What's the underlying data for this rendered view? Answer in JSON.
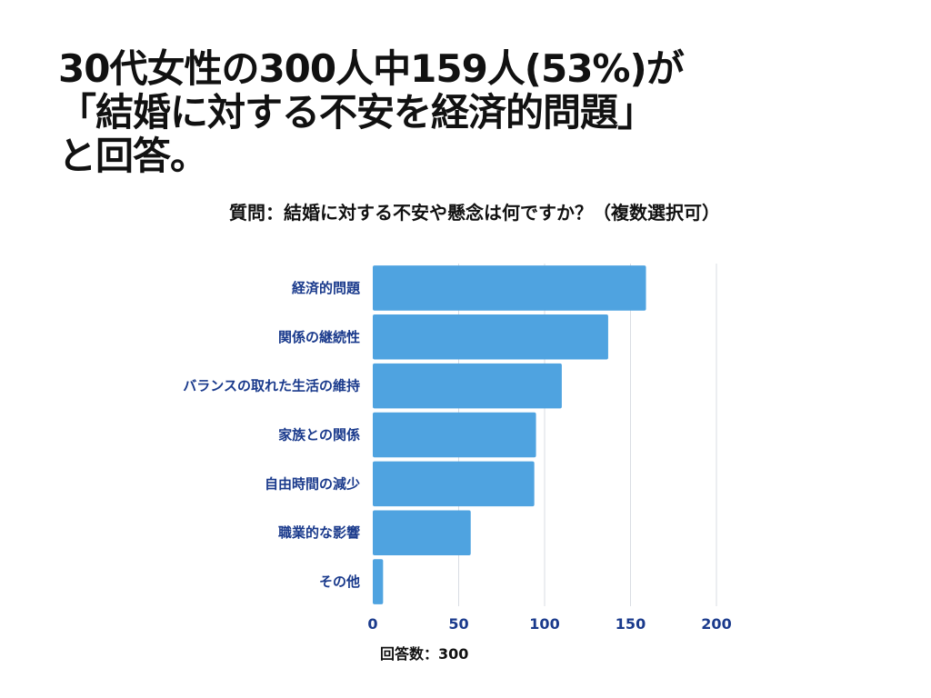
{
  "headline": {
    "line1": "30代女性の300人中159人(53%)が",
    "line2": "「結婚に対する不安を経済的問題」",
    "line3": "と回答。"
  },
  "question": "質問：結婚に対する不安や懸念は何ですか？（複数選択可）",
  "colors": {
    "bar": "#4fa3e0",
    "label": "#1a3a8c",
    "grid": "#d9dde3"
  },
  "chart_data": {
    "type": "bar",
    "orientation": "horizontal",
    "categories": [
      "経済的問題",
      "関係の継続性",
      "バランスの取れた生活の維持",
      "家族との関係",
      "自由時間の減少",
      "職業的な影響",
      "その他"
    ],
    "values": [
      159,
      137,
      110,
      95,
      94,
      57,
      6
    ],
    "xlim": [
      0,
      200
    ],
    "xticks": [
      0,
      50,
      100,
      150,
      200
    ],
    "xticklabels": [
      "0",
      "50",
      "100",
      "150",
      "200"
    ],
    "xlabel": "回答数：300",
    "grid": true
  }
}
